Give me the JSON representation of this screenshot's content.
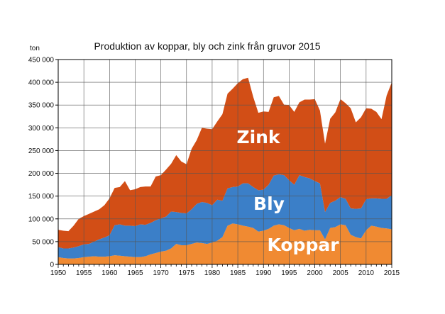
{
  "chart_data": {
    "type": "area",
    "stacked": true,
    "title": "Produktion av koppar, bly och zink från gruvor 2015",
    "ylabel": "ton",
    "ylim": [
      0,
      450000
    ],
    "xlim": [
      1950,
      2015
    ],
    "y_ticks": [
      "0",
      "50 000",
      "100 000",
      "150 000",
      "200 000",
      "250 000",
      "300 000",
      "350 000",
      "400 000",
      "450 000"
    ],
    "y_tick_values": [
      0,
      50000,
      100000,
      150000,
      200000,
      250000,
      300000,
      350000,
      400000,
      450000
    ],
    "x_ticks": [
      "1950",
      "1955",
      "1960",
      "1965",
      "1970",
      "1975",
      "1980",
      "1985",
      "1990",
      "1995",
      "2000",
      "2005",
      "2010",
      "2015"
    ],
    "x_tick_values": [
      1950,
      1955,
      1960,
      1965,
      1970,
      1975,
      1980,
      1985,
      1990,
      1995,
      2000,
      2005,
      2010,
      2015
    ],
    "grid": true,
    "x": [
      1950,
      1951,
      1952,
      1953,
      1954,
      1955,
      1956,
      1957,
      1958,
      1959,
      1960,
      1961,
      1962,
      1963,
      1964,
      1965,
      1966,
      1967,
      1968,
      1969,
      1970,
      1971,
      1972,
      1973,
      1974,
      1975,
      1976,
      1977,
      1978,
      1979,
      1980,
      1981,
      1982,
      1983,
      1984,
      1985,
      1986,
      1987,
      1988,
      1989,
      1990,
      1991,
      1992,
      1993,
      1994,
      1995,
      1996,
      1997,
      1998,
      1999,
      2000,
      2001,
      2002,
      2003,
      2004,
      2005,
      2006,
      2007,
      2008,
      2009,
      2010,
      2011,
      2012,
      2013,
      2014,
      2015
    ],
    "series": [
      {
        "name": "Koppar",
        "color": "#f08a32",
        "values": [
          16000,
          14000,
          13000,
          13000,
          14000,
          16000,
          17000,
          18000,
          17000,
          17000,
          18000,
          20000,
          19000,
          18000,
          17000,
          16000,
          16000,
          18000,
          22000,
          25000,
          28000,
          30000,
          35000,
          45000,
          42000,
          42000,
          45000,
          48000,
          47000,
          45000,
          48000,
          52000,
          60000,
          85000,
          90000,
          88000,
          85000,
          83000,
          80000,
          72000,
          74000,
          78000,
          85000,
          88000,
          86000,
          80000,
          75000,
          78000,
          74000,
          76000,
          75000,
          75000,
          55000,
          80000,
          82000,
          88000,
          86000,
          65000,
          60000,
          57000,
          75000,
          85000,
          83000,
          80000,
          79000,
          77000
        ]
      },
      {
        "name": "Bly",
        "color": "#3b7fc8",
        "values": [
          22000,
          21000,
          22000,
          24000,
          26000,
          28000,
          28000,
          32000,
          38000,
          42000,
          46000,
          66000,
          69000,
          67000,
          68000,
          68000,
          72000,
          69000,
          69000,
          72000,
          73000,
          75000,
          81000,
          70000,
          71000,
          70000,
          76000,
          85000,
          90000,
          90000,
          82000,
          90000,
          80000,
          82000,
          80000,
          83000,
          93000,
          95000,
          90000,
          91000,
          90000,
          97000,
          110000,
          110000,
          110000,
          105000,
          100000,
          118000,
          118000,
          113000,
          108000,
          103000,
          60000,
          55000,
          58000,
          60000,
          58000,
          58000,
          62000,
          66000,
          68000,
          60000,
          62000,
          64000,
          65000,
          75000
        ]
      },
      {
        "name": "Zink",
        "color": "#d24e16",
        "values": [
          38000,
          39000,
          38000,
          48000,
          60000,
          62000,
          66000,
          66000,
          66000,
          71000,
          81000,
          82000,
          82000,
          98000,
          78000,
          81000,
          82000,
          84000,
          80000,
          96000,
          95000,
          103000,
          105000,
          125000,
          113000,
          108000,
          133000,
          140000,
          163000,
          163000,
          167000,
          172000,
          190000,
          208000,
          216000,
          227000,
          229000,
          232000,
          198000,
          170000,
          172000,
          160000,
          172000,
          172000,
          155000,
          165000,
          160000,
          160000,
          170000,
          173000,
          180000,
          160000,
          150000,
          185000,
          194000,
          215000,
          210000,
          220000,
          190000,
          200000,
          200000,
          197000,
          190000,
          175000,
          227000,
          248000
        ]
      }
    ],
    "labels": [
      "Zink",
      "Bly",
      "Koppar"
    ]
  }
}
